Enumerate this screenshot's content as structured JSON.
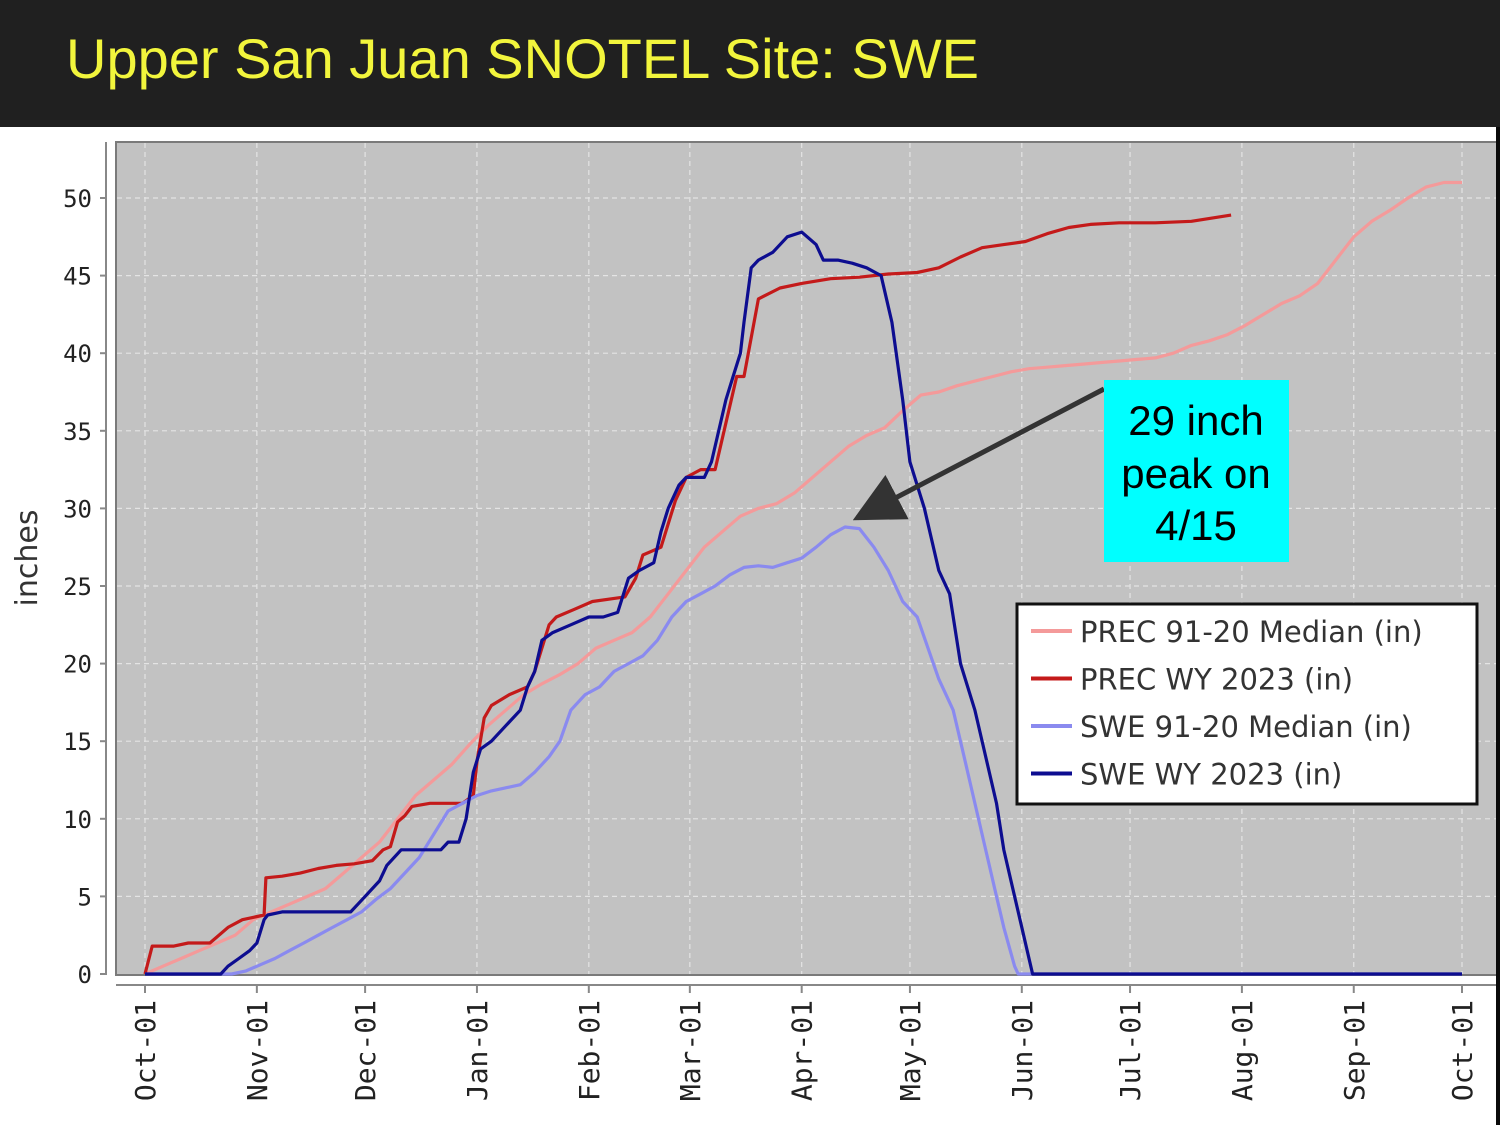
{
  "slide": {
    "title": "Upper San Juan SNOTEL Site: SWE"
  },
  "chart_data": {
    "type": "line",
    "title": "Upper San Juan SNOTEL Site: SWE",
    "ylabel": "inches",
    "xlabel": "",
    "ylim": [
      0,
      53
    ],
    "y_ticks": [
      0,
      5,
      10,
      15,
      20,
      25,
      30,
      35,
      40,
      45,
      50
    ],
    "x_range_days": [
      0,
      365
    ],
    "x_ticks": [
      {
        "label": "Oct-01",
        "day": 0
      },
      {
        "label": "Nov-01",
        "day": 31
      },
      {
        "label": "Dec-01",
        "day": 61
      },
      {
        "label": "Jan-01",
        "day": 92
      },
      {
        "label": "Feb-01",
        "day": 123
      },
      {
        "label": "Mar-01",
        "day": 151
      },
      {
        "label": "Apr-01",
        "day": 182
      },
      {
        "label": "May-01",
        "day": 212
      },
      {
        "label": "Jun-01",
        "day": 243
      },
      {
        "label": "Jul-01",
        "day": 273
      },
      {
        "label": "Aug-01",
        "day": 304
      },
      {
        "label": "Sep-01",
        "day": 335
      },
      {
        "label": "Oct-01",
        "day": 365
      }
    ],
    "grid": true,
    "legend_position": "right",
    "series": [
      {
        "name": "PREC 91-20 Median (in)",
        "color": "#f49a9a",
        "points": [
          [
            0,
            0
          ],
          [
            5,
            0.5
          ],
          [
            10,
            1
          ],
          [
            15,
            1.5
          ],
          [
            20,
            2
          ],
          [
            25,
            2.5
          ],
          [
            30,
            3.5
          ],
          [
            35,
            4
          ],
          [
            40,
            4.5
          ],
          [
            45,
            5
          ],
          [
            50,
            5.5
          ],
          [
            55,
            6.5
          ],
          [
            60,
            7.5
          ],
          [
            65,
            8.5
          ],
          [
            70,
            10
          ],
          [
            75,
            11.5
          ],
          [
            80,
            12.5
          ],
          [
            85,
            13.5
          ],
          [
            90,
            14.8
          ],
          [
            95,
            16
          ],
          [
            100,
            17
          ],
          [
            105,
            18
          ],
          [
            110,
            18.7
          ],
          [
            115,
            19.3
          ],
          [
            120,
            20
          ],
          [
            125,
            21
          ],
          [
            130,
            21.5
          ],
          [
            135,
            22
          ],
          [
            140,
            23
          ],
          [
            145,
            24.5
          ],
          [
            150,
            26
          ],
          [
            155,
            27.5
          ],
          [
            160,
            28.5
          ],
          [
            165,
            29.5
          ],
          [
            170,
            30
          ],
          [
            175,
            30.3
          ],
          [
            180,
            31
          ],
          [
            185,
            32
          ],
          [
            190,
            33
          ],
          [
            195,
            34
          ],
          [
            200,
            34.7
          ],
          [
            205,
            35.2
          ],
          [
            210,
            36.3
          ],
          [
            215,
            37.3
          ],
          [
            220,
            37.5
          ],
          [
            225,
            37.9
          ],
          [
            230,
            38.2
          ],
          [
            235,
            38.5
          ],
          [
            240,
            38.8
          ],
          [
            245,
            39
          ],
          [
            250,
            39.1
          ],
          [
            255,
            39.2
          ],
          [
            260,
            39.3
          ],
          [
            265,
            39.4
          ],
          [
            270,
            39.5
          ],
          [
            275,
            39.6
          ],
          [
            280,
            39.7
          ],
          [
            285,
            40
          ],
          [
            290,
            40.5
          ],
          [
            295,
            40.8
          ],
          [
            300,
            41.2
          ],
          [
            305,
            41.8
          ],
          [
            310,
            42.5
          ],
          [
            315,
            43.2
          ],
          [
            320,
            43.7
          ],
          [
            325,
            44.5
          ],
          [
            330,
            46
          ],
          [
            335,
            47.5
          ],
          [
            340,
            48.5
          ],
          [
            345,
            49.2
          ],
          [
            350,
            50
          ],
          [
            355,
            50.7
          ],
          [
            360,
            51
          ],
          [
            365,
            51
          ]
        ]
      },
      {
        "name": "PREC WY 2023  (in)",
        "color": "#c41a1a",
        "points": [
          [
            0,
            0
          ],
          [
            2,
            1.8
          ],
          [
            8,
            1.8
          ],
          [
            12,
            2
          ],
          [
            18,
            2
          ],
          [
            23,
            3
          ],
          [
            27,
            3.5
          ],
          [
            33,
            3.8
          ],
          [
            33.5,
            6.2
          ],
          [
            38,
            6.3
          ],
          [
            43,
            6.5
          ],
          [
            48,
            6.8
          ],
          [
            53,
            7
          ],
          [
            58,
            7.1
          ],
          [
            63,
            7.3
          ],
          [
            66,
            8
          ],
          [
            68,
            8.2
          ],
          [
            70,
            9.8
          ],
          [
            72,
            10.2
          ],
          [
            74,
            10.8
          ],
          [
            79,
            11
          ],
          [
            84,
            11
          ],
          [
            88,
            11
          ],
          [
            91,
            11.5
          ],
          [
            92,
            13.7
          ],
          [
            94,
            16.5
          ],
          [
            96,
            17.3
          ],
          [
            101,
            18
          ],
          [
            106,
            18.5
          ],
          [
            108,
            19.5
          ],
          [
            112,
            22.5
          ],
          [
            114,
            23
          ],
          [
            119,
            23.5
          ],
          [
            124,
            24
          ],
          [
            130,
            24.2
          ],
          [
            133,
            24.3
          ],
          [
            136,
            25.5
          ],
          [
            138,
            27
          ],
          [
            143,
            27.5
          ],
          [
            145,
            29
          ],
          [
            147,
            30.5
          ],
          [
            150,
            32
          ],
          [
            154,
            32.5
          ],
          [
            158,
            32.5
          ],
          [
            161,
            35.5
          ],
          [
            164,
            38.5
          ],
          [
            166,
            38.5
          ],
          [
            170,
            43.5
          ],
          [
            176,
            44.2
          ],
          [
            182,
            44.5
          ],
          [
            190,
            44.8
          ],
          [
            198,
            44.9
          ],
          [
            206,
            45.1
          ],
          [
            214,
            45.2
          ],
          [
            220,
            45.5
          ],
          [
            226,
            46.2
          ],
          [
            232,
            46.8
          ],
          [
            238,
            47
          ],
          [
            244,
            47.2
          ],
          [
            250,
            47.7
          ],
          [
            256,
            48.1
          ],
          [
            262,
            48.3
          ],
          [
            270,
            48.4
          ],
          [
            280,
            48.4
          ],
          [
            290,
            48.5
          ],
          [
            301,
            48.9
          ]
        ]
      },
      {
        "name": "SWE 91-20 Median (in)",
        "color": "#8a8aef",
        "points": [
          [
            0,
            0
          ],
          [
            24,
            0
          ],
          [
            28,
            0.2
          ],
          [
            32,
            0.6
          ],
          [
            36,
            1
          ],
          [
            40,
            1.5
          ],
          [
            44,
            2
          ],
          [
            48,
            2.5
          ],
          [
            52,
            3
          ],
          [
            56,
            3.5
          ],
          [
            60,
            4
          ],
          [
            64,
            4.8
          ],
          [
            68,
            5.5
          ],
          [
            72,
            6.5
          ],
          [
            76,
            7.5
          ],
          [
            80,
            9
          ],
          [
            84,
            10.5
          ],
          [
            88,
            11
          ],
          [
            92,
            11.5
          ],
          [
            96,
            11.8
          ],
          [
            100,
            12
          ],
          [
            104,
            12.2
          ],
          [
            108,
            13
          ],
          [
            112,
            14
          ],
          [
            115,
            15
          ],
          [
            118,
            17
          ],
          [
            122,
            18
          ],
          [
            126,
            18.5
          ],
          [
            130,
            19.5
          ],
          [
            134,
            20
          ],
          [
            138,
            20.5
          ],
          [
            142,
            21.5
          ],
          [
            146,
            23
          ],
          [
            150,
            24
          ],
          [
            154,
            24.5
          ],
          [
            158,
            25
          ],
          [
            162,
            25.7
          ],
          [
            166,
            26.2
          ],
          [
            170,
            26.3
          ],
          [
            174,
            26.2
          ],
          [
            178,
            26.5
          ],
          [
            182,
            26.8
          ],
          [
            186,
            27.5
          ],
          [
            190,
            28.3
          ],
          [
            194,
            28.8
          ],
          [
            198,
            28.7
          ],
          [
            202,
            27.5
          ],
          [
            206,
            26
          ],
          [
            210,
            24
          ],
          [
            214,
            23
          ],
          [
            217,
            21
          ],
          [
            220,
            19
          ],
          [
            224,
            17
          ],
          [
            227,
            14
          ],
          [
            229,
            12
          ],
          [
            231,
            10
          ],
          [
            233,
            8
          ],
          [
            236,
            5
          ],
          [
            238,
            3
          ],
          [
            241,
            0.5
          ],
          [
            242,
            0
          ],
          [
            365,
            0
          ]
        ]
      },
      {
        "name": "SWE WY 2023  (in)",
        "color": "#0d0d90",
        "points": [
          [
            0,
            0
          ],
          [
            21,
            0
          ],
          [
            23,
            0.5
          ],
          [
            26,
            1
          ],
          [
            29,
            1.5
          ],
          [
            31,
            2
          ],
          [
            33,
            3.5
          ],
          [
            34,
            3.8
          ],
          [
            38,
            4
          ],
          [
            43,
            4
          ],
          [
            48,
            4
          ],
          [
            53,
            4
          ],
          [
            57,
            4
          ],
          [
            59,
            4.5
          ],
          [
            61,
            5
          ],
          [
            65,
            6
          ],
          [
            67,
            7
          ],
          [
            71,
            8
          ],
          [
            75,
            8
          ],
          [
            79,
            8
          ],
          [
            82,
            8
          ],
          [
            84,
            8.5
          ],
          [
            87,
            8.5
          ],
          [
            89,
            10
          ],
          [
            91,
            13
          ],
          [
            93,
            14.5
          ],
          [
            96,
            15
          ],
          [
            100,
            16
          ],
          [
            104,
            17
          ],
          [
            106,
            18.5
          ],
          [
            108,
            19.5
          ],
          [
            110,
            21.5
          ],
          [
            113,
            22
          ],
          [
            118,
            22.5
          ],
          [
            123,
            23
          ],
          [
            127,
            23
          ],
          [
            131,
            23.3
          ],
          [
            134,
            25.5
          ],
          [
            137,
            26
          ],
          [
            141,
            26.5
          ],
          [
            143,
            28.5
          ],
          [
            145,
            30
          ],
          [
            148,
            31.5
          ],
          [
            150,
            32
          ],
          [
            155,
            32
          ],
          [
            157,
            33
          ],
          [
            159,
            35
          ],
          [
            161,
            37
          ],
          [
            163,
            38.5
          ],
          [
            165,
            40
          ],
          [
            166,
            42
          ],
          [
            168,
            45.5
          ],
          [
            170,
            46
          ],
          [
            174,
            46.5
          ],
          [
            178,
            47.5
          ],
          [
            182,
            47.8
          ],
          [
            186,
            47
          ],
          [
            188,
            46
          ],
          [
            192,
            46
          ],
          [
            196,
            45.8
          ],
          [
            200,
            45.5
          ],
          [
            204,
            45
          ],
          [
            207,
            42
          ],
          [
            210,
            37
          ],
          [
            212,
            33
          ],
          [
            216,
            30
          ],
          [
            220,
            26
          ],
          [
            223,
            24.5
          ],
          [
            226,
            20
          ],
          [
            230,
            17
          ],
          [
            232,
            15
          ],
          [
            236,
            11
          ],
          [
            238,
            8
          ],
          [
            241,
            5
          ],
          [
            243,
            3
          ],
          [
            245,
            1
          ],
          [
            246,
            0
          ],
          [
            365,
            0
          ]
        ]
      }
    ],
    "annotation": {
      "lines": [
        "29 inch",
        "peak on",
        "4/15"
      ],
      "arrow_target": {
        "day": 196,
        "value": 29
      },
      "box_color": "#00ffff"
    }
  }
}
